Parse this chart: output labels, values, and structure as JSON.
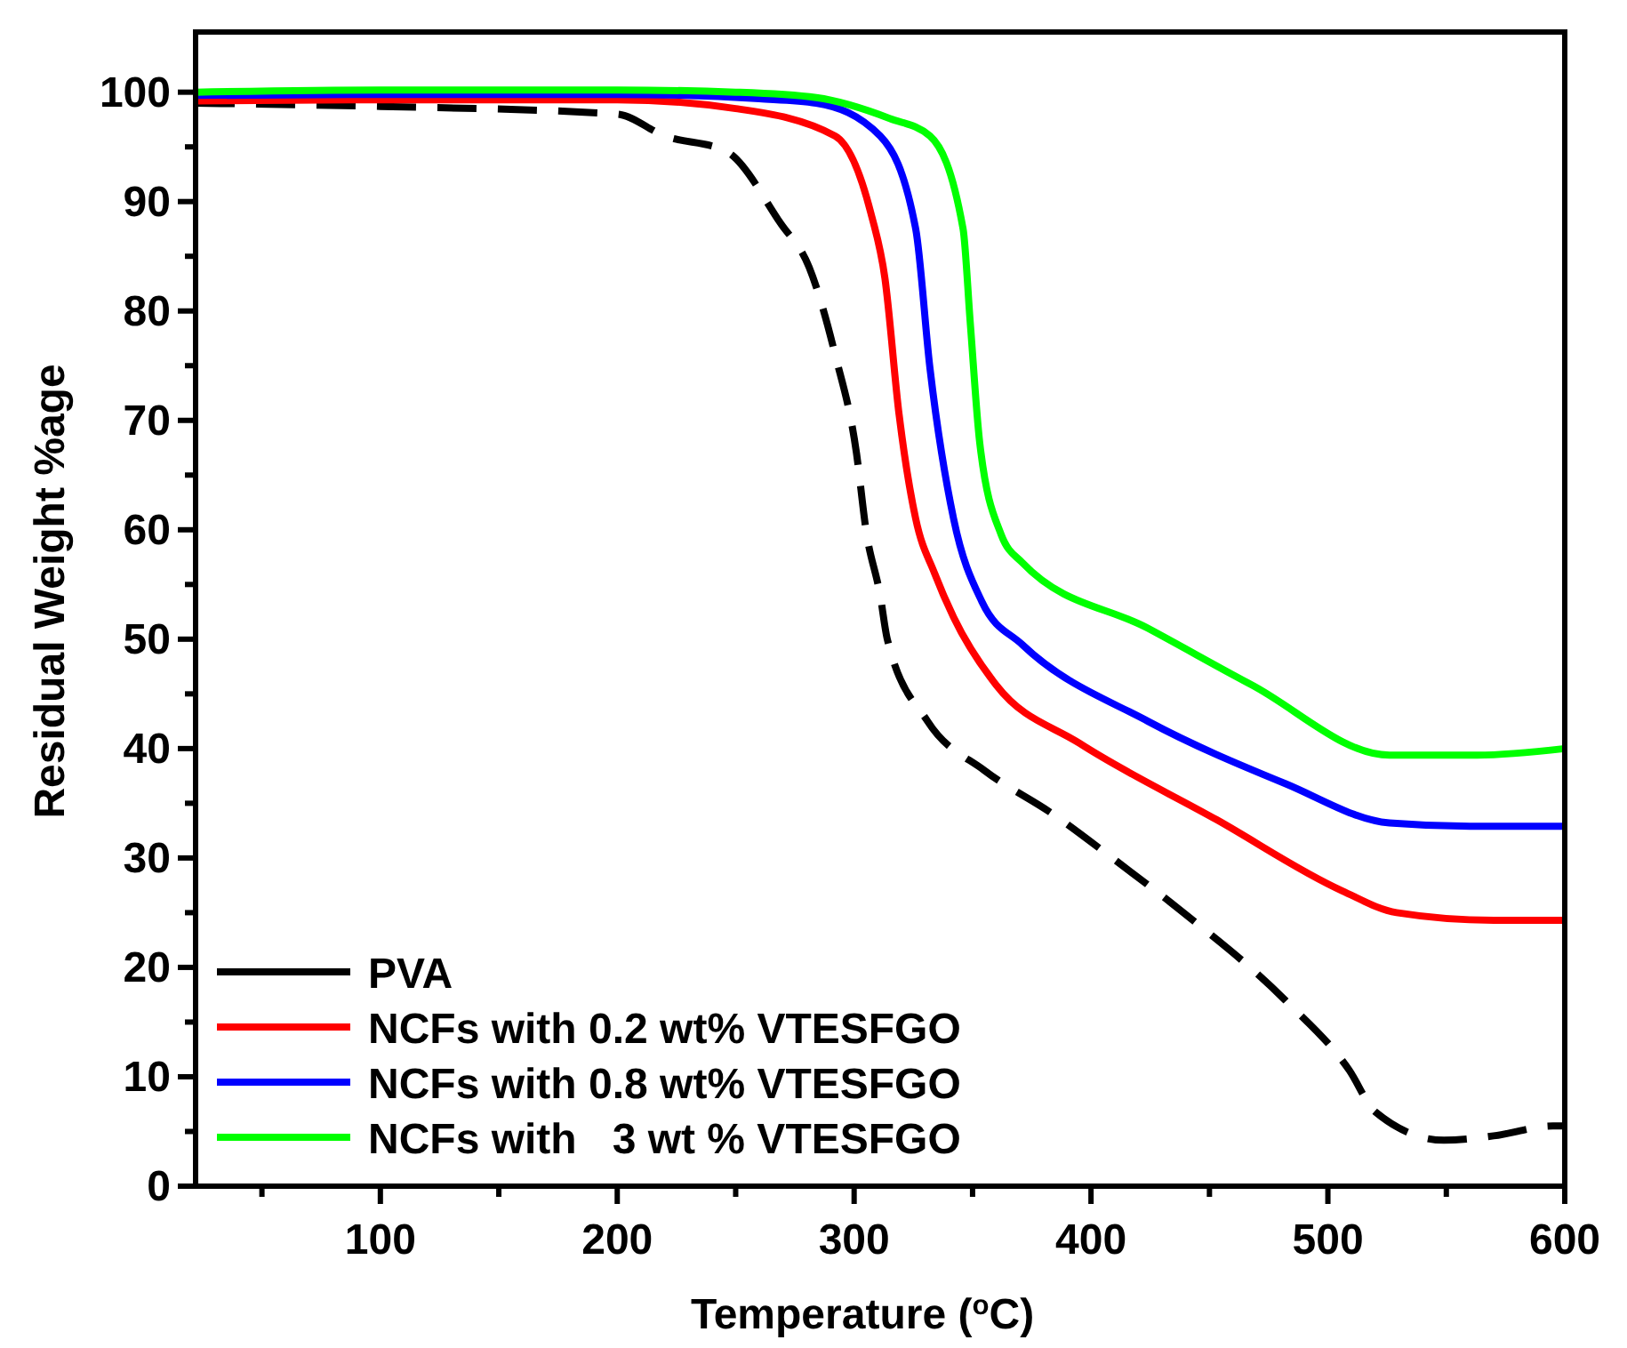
{
  "chart_data": {
    "type": "line",
    "xlabel": "Temperature ($^{o}$C)",
    "ylabel": "Residual Weight %age",
    "xlim": [
      22,
      600
    ],
    "ylim": [
      0,
      105.5
    ],
    "xticks": [
      {
        "value": 50,
        "label": null
      },
      100,
      {
        "value": 150,
        "label": null
      },
      200,
      {
        "value": 250,
        "label": null
      },
      300,
      {
        "value": 350,
        "label": null
      },
      400,
      {
        "value": 450,
        "label": null
      },
      500,
      {
        "value": 550,
        "label": null
      },
      600
    ],
    "yticks": [
      0,
      {
        "value": 5,
        "label": null
      },
      10,
      {
        "value": 15,
        "label": null
      },
      20,
      {
        "value": 25,
        "label": null
      },
      30,
      {
        "value": 35,
        "label": null
      },
      40,
      {
        "value": 45,
        "label": null
      },
      50,
      {
        "value": 55,
        "label": null
      },
      60,
      {
        "value": 65,
        "label": null
      },
      70,
      {
        "value": 75,
        "label": null
      },
      80,
      {
        "value": 85,
        "label": null
      },
      90,
      {
        "value": 95,
        "label": null
      },
      100
    ],
    "legend": "bottom left",
    "grid": false,
    "series": [
      {
        "name": "PVA",
        "color": "#000000",
        "line_style": "dashed",
        "x": [
          22,
          100,
          200,
          220,
          246,
          269,
          281,
          292,
          301,
          305,
          311,
          314,
          331,
          355,
          384,
          409,
          439,
          482,
          509,
          520,
          549,
          570,
          595,
          600
        ],
        "values": [
          99,
          98.7,
          98,
          96,
          94.6,
          88,
          84,
          76,
          67,
          60,
          54,
          50,
          42.5,
          38,
          34,
          30,
          25,
          17,
          10.6,
          6.8,
          4.2,
          4.6,
          5.5,
          5.5
        ]
      },
      {
        "name": "NCFs with 0.2 wt% VTESFGO",
        "color": "#ff0000",
        "line_style": "solid",
        "x": [
          22,
          100,
          200,
          250,
          292,
          307,
          313,
          319,
          326,
          334,
          342,
          360,
          395,
          453,
          506,
          529,
          570,
          600
        ],
        "values": [
          99.2,
          99.3,
          99.3,
          98.5,
          96,
          89,
          83,
          70.5,
          61,
          56,
          52,
          45.8,
          40.5,
          33.5,
          27,
          25,
          24.3,
          24.3
        ]
      },
      {
        "name": "NCFs with 0.8 wt% VTESFGO",
        "color": "#0000ff",
        "line_style": "solid",
        "x": [
          22,
          100,
          200,
          260,
          284,
          311,
          326,
          332,
          342,
          354,
          371,
          424,
          482,
          526,
          560,
          600
        ],
        "values": [
          99.7,
          99.8,
          99.8,
          99.4,
          99,
          96,
          87.5,
          74.8,
          61,
          53.4,
          49.5,
          42.5,
          36.8,
          33.2,
          32.9,
          32.9
        ]
      },
      {
        "name": "NCFs with   3 wt % VTESFGO",
        "color": "#00ff00",
        "line_style": "solid",
        "x": [
          22,
          100,
          200,
          250,
          284,
          315,
          332,
          346,
          349,
          353,
          362,
          371,
          424,
          468,
          526,
          563,
          600
        ],
        "values": [
          100,
          100.2,
          100.2,
          100,
          99.5,
          97.6,
          96,
          87.5,
          79,
          68,
          59.6,
          57,
          51,
          45.8,
          39.4,
          39.4,
          40
        ]
      }
    ]
  }
}
